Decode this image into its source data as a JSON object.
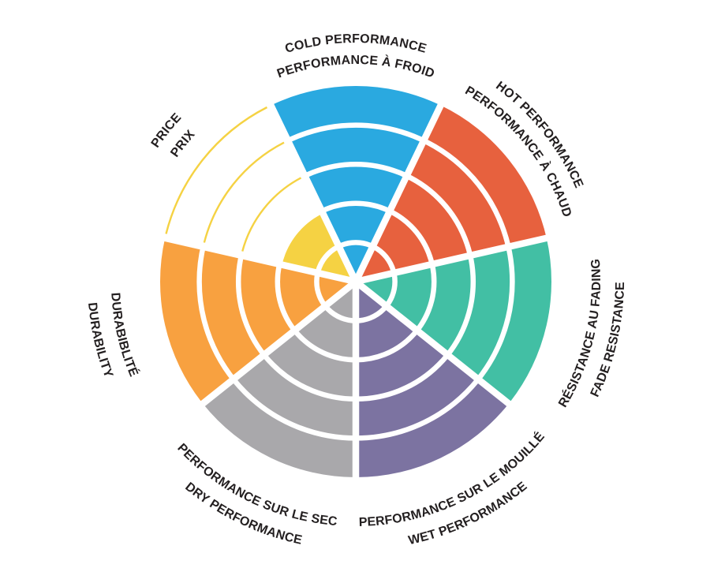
{
  "chart_data": {
    "type": "polar-sector-rating",
    "title": "",
    "rating_scale": {
      "min": 0,
      "max": 5
    },
    "background_color": "#FFFFFF",
    "ring_separator_color": "#FFFFFF",
    "label_text_color": "#231F20",
    "legend_position": "around-wheel",
    "grid": "concentric-rings",
    "sectors": [
      {
        "id": "cold-performance",
        "label_en": "COLD PERFORMANCE",
        "label_fr": "PERFORMANCE À FROID",
        "color": "#2AA9E0",
        "rating": 5
      },
      {
        "id": "hot-performance",
        "label_en": "HOT PERFORMANCE",
        "label_fr": "PERFORMANCE À CHAUD",
        "color": "#E7613E",
        "rating": 5
      },
      {
        "id": "fade-resistance",
        "label_en": "FADE RESISTANCE",
        "label_fr": "RÉSISTANCE AU FADING",
        "color": "#42BFA4",
        "rating": 5
      },
      {
        "id": "wet-performance",
        "label_en": "WET PERFORMANCE",
        "label_fr": "PERFORMANCE SUR LE MOUILLÉ",
        "color": "#7C73A1",
        "rating": 5
      },
      {
        "id": "dry-performance",
        "label_en": "DRY PERFORMANCE",
        "label_fr": "PERFORMANCE SUR LE SEC",
        "color": "#A9A8AB",
        "rating": 5
      },
      {
        "id": "durability",
        "label_en": "DURABILITY",
        "label_fr": "DURABIBLITÉ",
        "color": "#F8A140",
        "rating": 5
      },
      {
        "id": "price",
        "label_en": "PRICE",
        "label_fr": "PRIX",
        "color": "#F5D243",
        "rating": 2
      }
    ]
  }
}
